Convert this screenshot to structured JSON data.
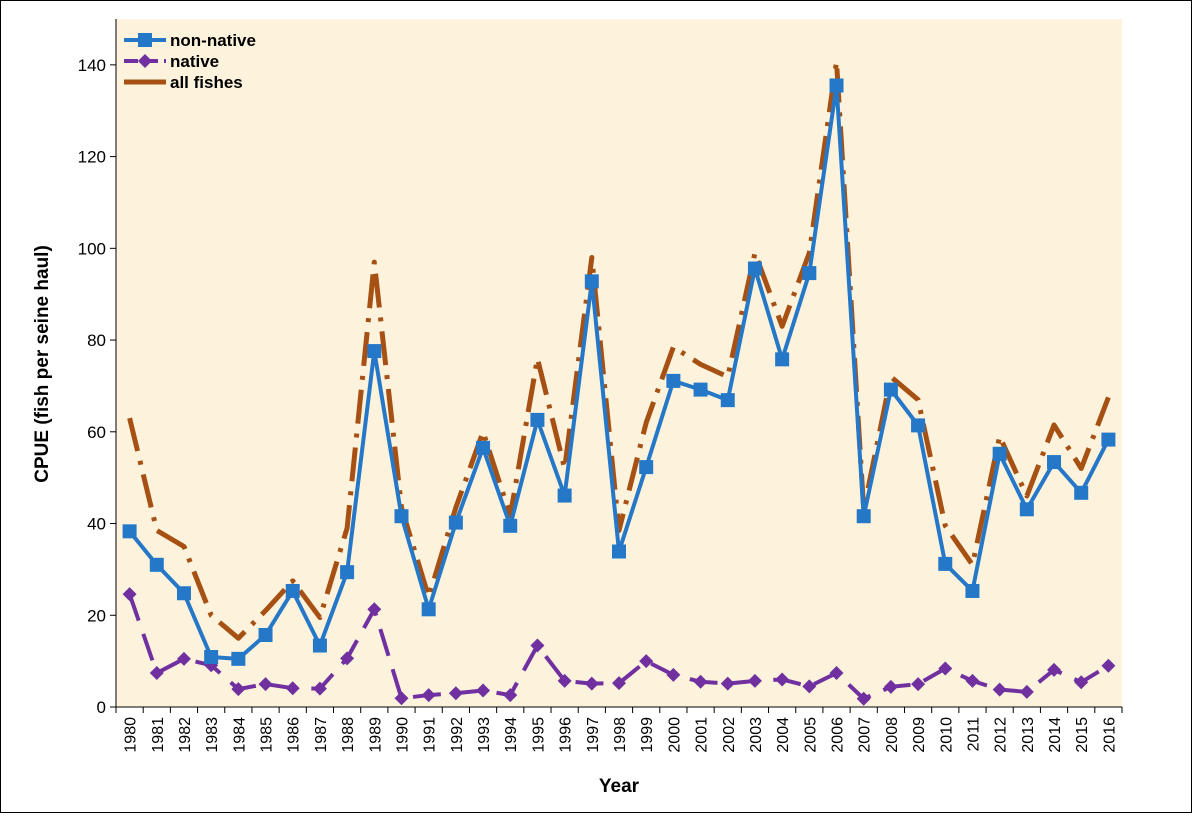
{
  "chart_data": {
    "type": "line",
    "x_label": "Year",
    "y_label": "CPUE (fish per seine haul)",
    "categories": [
      "1980",
      "1981",
      "1982",
      "1983",
      "1984",
      "1985",
      "1986",
      "1987",
      "1988",
      "1989",
      "1990",
      "1991",
      "1992",
      "1993",
      "1994",
      "1995",
      "1996",
      "1997",
      "1998",
      "1999",
      "2000",
      "2001",
      "2002",
      "2003",
      "2004",
      "2005",
      "2006",
      "2007",
      "2008",
      "2009",
      "2010",
      "2011",
      "2012",
      "2013",
      "2014",
      "2015",
      "2016"
    ],
    "series": [
      {
        "name": "non-native",
        "color": "#2577c8",
        "values": [
          38.3,
          31,
          24.8,
          10.9,
          10.5,
          15.7,
          25.3,
          13.4,
          29.4,
          77.6,
          41.6,
          21.3,
          40.2,
          56.5,
          39.5,
          62.6,
          46.1,
          92.8,
          33.9,
          52.3,
          71.1,
          69.2,
          66.9,
          95.6,
          75.8,
          94.6,
          135.5,
          41.6,
          69.2,
          61.4,
          31.2,
          25.3,
          55.2,
          43.1,
          53.4,
          46.7,
          58.3
        ]
      },
      {
        "name": "native",
        "color": "#7030a0",
        "values": [
          24.6,
          7.4,
          10.5,
          9.1,
          3.9,
          5,
          4.1,
          4,
          10.6,
          21.3,
          1.9,
          2.6,
          3,
          3.6,
          2.6,
          13.4,
          5.7,
          5.1,
          5.2,
          10,
          7,
          5.5,
          5.1,
          5.7,
          6,
          4.5,
          7.4,
          1.8,
          4.4,
          5,
          8.4,
          5.7,
          3.8,
          3.3,
          8.1,
          5.4,
          9
        ]
      },
      {
        "name": "all fishes",
        "color": "#a65113",
        "values": [
          63,
          38.5,
          35,
          20,
          15,
          21,
          27.5,
          19.5,
          39,
          97,
          43.5,
          24,
          43.5,
          60,
          41.7,
          76,
          52,
          98,
          38.5,
          62,
          78.5,
          74.7,
          72,
          99,
          83,
          99,
          140.7,
          43,
          72,
          67,
          39.5,
          31,
          59,
          46,
          61.5,
          52,
          67.5
        ]
      }
    ],
    "ylim": [
      0,
      150
    ],
    "yticks": [
      0,
      20,
      40,
      60,
      80,
      100,
      120,
      140
    ],
    "background": "#fdf3dc",
    "legend": "upper-left"
  }
}
